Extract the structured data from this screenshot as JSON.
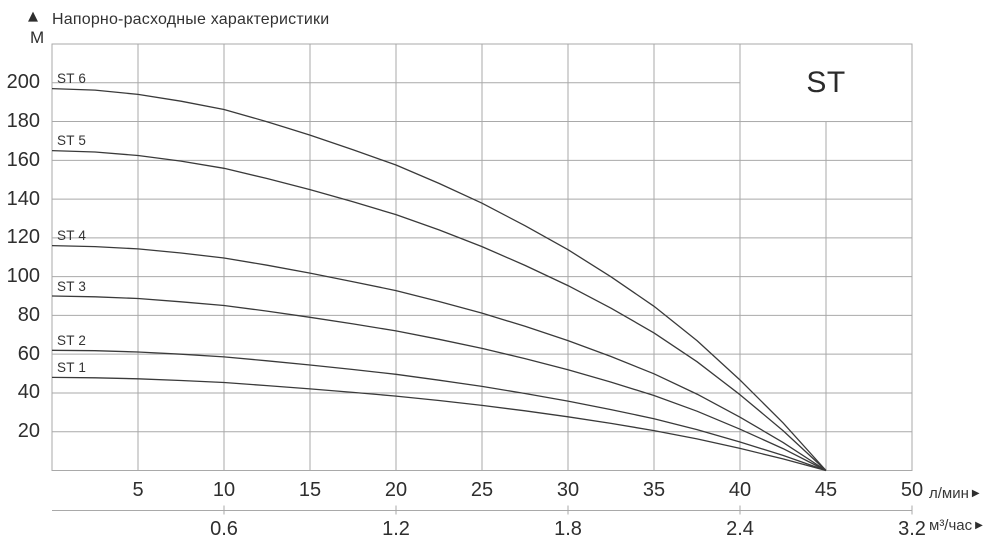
{
  "title": {
    "text": "Напорно-расходные характеристики",
    "y_unit": "М"
  },
  "icons": {
    "up_triangle": "▲",
    "right_triangle": "▶"
  },
  "model_badge": {
    "label": "ST"
  },
  "axes": {
    "primary_x": {
      "unit": "л/мин"
    },
    "secondary_x": {
      "unit": "м³/час"
    }
  },
  "colors": {
    "grid": "#a9a9a9",
    "curve": "#3a3a3a",
    "text": "#2e2e2e",
    "background": "#ffffff"
  },
  "chart_data": {
    "type": "line",
    "title": "Напорно-расходные характеристики",
    "xlabel": "л/мин",
    "x2label": "м³/час",
    "ylabel": "М",
    "xlim": [
      0,
      50
    ],
    "ylim": [
      0,
      220
    ],
    "grid": "on",
    "legend_position": "labels above left end of each curve",
    "x_ticks": [
      5,
      10,
      15,
      20,
      25,
      30,
      35,
      40,
      45,
      50
    ],
    "y_ticks": [
      20,
      40,
      60,
      80,
      100,
      120,
      140,
      160,
      180,
      200
    ],
    "x2_ticks": [
      {
        "label": "0.6",
        "lpm": 10
      },
      {
        "label": "1.2",
        "lpm": 20
      },
      {
        "label": "1.8",
        "lpm": 30
      },
      {
        "label": "2.4",
        "lpm": 40
      },
      {
        "label": "3.2",
        "lpm": 50
      }
    ],
    "x": [
      0,
      2.5,
      5,
      7.5,
      10,
      12.5,
      15,
      17.5,
      20,
      22.5,
      25,
      27.5,
      30,
      32.5,
      35,
      37.5,
      40,
      42.5,
      45
    ],
    "series": [
      {
        "name": "ST 1",
        "h0": 48,
        "values": [
          48.0,
          47.8,
          47.3,
          46.4,
          45.4,
          43.8,
          42.1,
          40.3,
          38.4,
          36.1,
          33.6,
          30.8,
          27.7,
          24.3,
          20.6,
          16.3,
          11.4,
          6.0,
          0
        ]
      },
      {
        "name": "ST 2",
        "h0": 62,
        "values": [
          62.0,
          61.8,
          61.1,
          60.0,
          58.6,
          56.6,
          54.4,
          52.1,
          49.6,
          46.6,
          43.4,
          39.7,
          35.8,
          31.4,
          26.7,
          21.1,
          14.7,
          7.8,
          0
        ]
      },
      {
        "name": "ST 3",
        "h0": 90,
        "values": [
          90.0,
          89.6,
          88.7,
          87.0,
          85.1,
          82.2,
          79.0,
          75.6,
          72.0,
          67.7,
          63.0,
          57.7,
          52.0,
          45.6,
          38.7,
          30.6,
          21.3,
          11.3,
          0
        ]
      },
      {
        "name": "ST 4",
        "h0": 116,
        "values": [
          116.0,
          115.5,
          114.3,
          112.2,
          109.6,
          105.9,
          101.8,
          97.4,
          92.8,
          87.2,
          81.2,
          74.4,
          67.0,
          58.8,
          49.9,
          39.4,
          27.5,
          14.5,
          0
        ]
      },
      {
        "name": "ST 5",
        "h0": 165,
        "values": [
          165.0,
          164.3,
          162.5,
          159.6,
          155.9,
          150.6,
          144.9,
          138.6,
          132.0,
          124.1,
          115.5,
          105.8,
          95.4,
          83.7,
          71.0,
          56.1,
          39.1,
          20.6,
          0
        ]
      },
      {
        "name": "ST 6",
        "h0": 197,
        "values": [
          197.0,
          196.2,
          194.0,
          190.5,
          186.2,
          179.9,
          173.0,
          165.5,
          157.6,
          148.1,
          137.9,
          126.3,
          113.9,
          99.9,
          84.7,
          67.0,
          46.7,
          24.6,
          0
        ]
      }
    ]
  }
}
